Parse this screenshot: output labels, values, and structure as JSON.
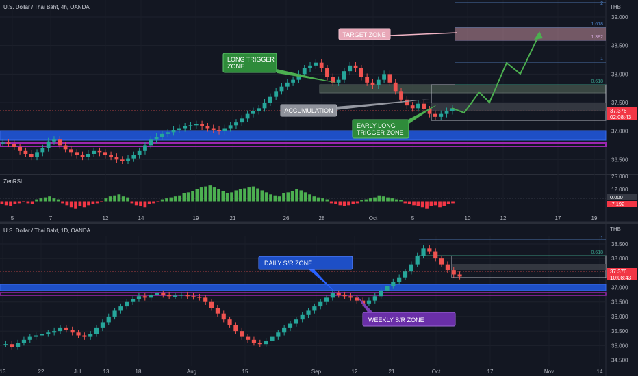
{
  "top_chart": {
    "title": "U.S. Dollar / Thai Baht, 4h, OANDA",
    "currency": "THB",
    "price_label": "37.376",
    "countdown_label": "02:08:43",
    "fib_labels": [
      "2",
      "1.618",
      "1.382",
      "1",
      "0.618"
    ],
    "annotations": {
      "target_zone": "TARGET ZONE",
      "long_trigger_zone": [
        "LONG TRIGGER",
        "ZONE"
      ],
      "accumulation": "ACCUMULATION",
      "early_long_trigger_zone": [
        "EARLY LONG",
        "TRIGGER ZONE"
      ]
    },
    "colors": {
      "up": "#26a69a",
      "down": "#ef5350",
      "blue_zone": "#1e4fc6",
      "purple_zone": "#9c27b0",
      "green_path": "#4caf50"
    }
  },
  "rsi_panel": {
    "title": "ZenRSI",
    "value_label": "0.000",
    "value2_label": "-7.192"
  },
  "bottom_chart": {
    "title": "U.S. Dollar / Thai Baht, 1D, OANDA",
    "currency": "THB",
    "price_label": "37.376",
    "countdown_label": "10:08:43",
    "fib_labels": [
      "1",
      "0.618"
    ],
    "annotations": {
      "daily_sr_zone": "DAILY S/R ZONE",
      "weekly_sr_zone": "WEEKLY S/R ZONE"
    }
  },
  "chart_data": [
    {
      "type": "candlestick",
      "title": "U.S. Dollar / Thai Baht, 4h, OANDA",
      "ylabel": "THB",
      "ylim": [
        36.3,
        39.3
      ],
      "y_ticks": [
        "39.000",
        "38.500",
        "38.000",
        "37.500",
        "37.000",
        "36.500"
      ],
      "x_ticks": [
        "5",
        "7",
        "12",
        "14",
        "19",
        "21",
        "26",
        "28",
        "Oct",
        "5",
        "10",
        "12",
        "17",
        "19"
      ],
      "close_path": [
        36.8,
        36.78,
        36.72,
        36.65,
        36.6,
        36.55,
        36.62,
        36.7,
        36.82,
        36.85,
        36.75,
        36.68,
        36.62,
        36.58,
        36.55,
        36.6,
        36.65,
        36.62,
        36.58,
        36.55,
        36.5,
        36.48,
        36.52,
        36.58,
        36.65,
        36.75,
        36.85,
        36.9,
        36.95,
        36.98,
        37.02,
        37.05,
        37.08,
        37.1,
        37.12,
        37.08,
        37.05,
        37.02,
        37.0,
        37.05,
        37.1,
        37.15,
        37.22,
        37.3,
        37.35,
        37.4,
        37.5,
        37.6,
        37.7,
        37.78,
        37.85,
        37.9,
        38.0,
        38.1,
        38.15,
        38.2,
        38.1,
        37.95,
        37.85,
        37.9,
        38.05,
        38.15,
        38.1,
        37.95,
        37.85,
        37.8,
        37.9,
        38.0,
        37.85,
        37.7,
        37.55,
        37.45,
        37.4,
        37.48,
        37.38,
        37.3,
        37.25,
        37.3,
        37.35,
        37.4
      ],
      "series": [
        {
          "name": "",
          "values": []
        }
      ]
    },
    {
      "type": "bar",
      "title": "ZenRSI",
      "ylim": [
        -12,
        25
      ],
      "y_ticks": [
        "25.000",
        "12.000"
      ],
      "values": [
        -3,
        -4,
        -5,
        -3,
        -2,
        -1,
        -2,
        -3,
        2,
        3,
        4,
        5,
        3,
        2,
        -2,
        -4,
        -6,
        -7,
        -5,
        -6,
        -4,
        -3,
        -2,
        -1,
        3,
        5,
        6,
        7,
        5,
        4,
        -2,
        -4,
        -5,
        -6,
        -3,
        -2,
        -1,
        2,
        3,
        4,
        5,
        6,
        8,
        9,
        10,
        12,
        14,
        15,
        16,
        14,
        12,
        10,
        8,
        9,
        11,
        12,
        13,
        14,
        15,
        13,
        11,
        9,
        7,
        6,
        5,
        8,
        9,
        10,
        12,
        11,
        9,
        7,
        5,
        4,
        3,
        2,
        -2,
        -3,
        -4,
        -5,
        -4,
        -3,
        -2,
        1,
        2,
        3,
        4,
        6,
        5,
        4,
        3,
        2,
        1,
        -2,
        -3,
        -4,
        -5,
        -6,
        -7,
        -5,
        -4,
        -6,
        -5,
        -3,
        -2
      ]
    },
    {
      "type": "candlestick",
      "title": "U.S. Dollar / Thai Baht, 1D, OANDA",
      "ylabel": "THB",
      "ylim": [
        34.3,
        38.9
      ],
      "y_ticks": [
        "38.500",
        "38.000",
        "37.500",
        "37.000",
        "36.500",
        "36.000",
        "35.500",
        "35.000",
        "34.500"
      ],
      "x_ticks": [
        "13",
        "22",
        "Jul",
        "13",
        "18",
        "Aug",
        "15",
        "Sep",
        "12",
        "21",
        "Oct",
        "17",
        "Nov",
        "14"
      ],
      "close_path": [
        35.05,
        34.95,
        35.1,
        35.2,
        35.3,
        35.35,
        35.4,
        35.45,
        35.5,
        35.6,
        35.55,
        35.45,
        35.35,
        35.3,
        35.4,
        35.6,
        35.8,
        36.0,
        36.2,
        36.35,
        36.5,
        36.6,
        36.7,
        36.65,
        36.75,
        36.8,
        36.75,
        36.7,
        36.72,
        36.75,
        36.7,
        36.68,
        36.65,
        36.5,
        36.3,
        36.1,
        35.9,
        35.7,
        35.5,
        35.3,
        35.2,
        35.1,
        35.05,
        35.15,
        35.3,
        35.45,
        35.6,
        35.75,
        35.9,
        36.05,
        36.2,
        36.35,
        36.5,
        36.65,
        36.8,
        36.75,
        36.7,
        36.65,
        36.55,
        36.45,
        36.55,
        36.7,
        36.9,
        37.05,
        37.2,
        37.35,
        37.55,
        37.8,
        38.1,
        38.35,
        38.25,
        38.0,
        37.8,
        37.6,
        37.45,
        37.38
      ]
    }
  ]
}
